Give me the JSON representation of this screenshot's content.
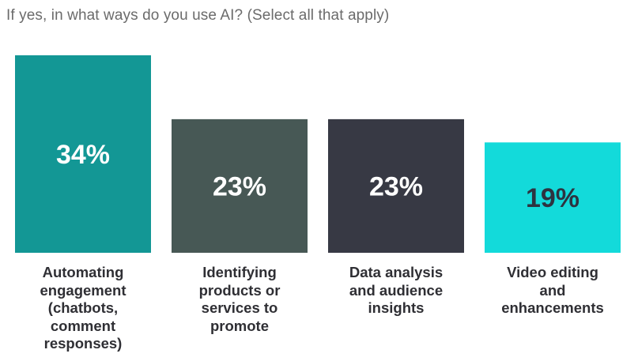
{
  "title": "If yes, in what ways do you use AI? (Select all that apply)",
  "chart_data": {
    "type": "bar",
    "title": "If yes, in what ways do you use AI? (Select all that apply)",
    "categories": [
      "Automating engagement (chatbots, comment responses)",
      "Identifying products or services to promote",
      "Data analysis and audience insights",
      "Video editing and enhancements"
    ],
    "category_lines": [
      [
        "Automating",
        "engagement",
        "(chatbots,",
        "comment",
        "responses)"
      ],
      [
        "Identifying",
        "products or",
        "services to",
        "promote"
      ],
      [
        "Data analysis",
        "and audience",
        "insights"
      ],
      [
        "Video editing",
        "and",
        "enhancements"
      ]
    ],
    "values": [
      34,
      23,
      23,
      19
    ],
    "value_labels": [
      "34%",
      "23%",
      "23%",
      "19%"
    ],
    "unit": "%",
    "ylim": [
      0,
      34
    ],
    "grid": false,
    "legend": "none",
    "colors": [
      "#139795",
      "#475855",
      "#373944",
      "#13dada"
    ],
    "label_colors": [
      "#ffffff",
      "#ffffff",
      "#ffffff",
      "#2d3340"
    ]
  }
}
